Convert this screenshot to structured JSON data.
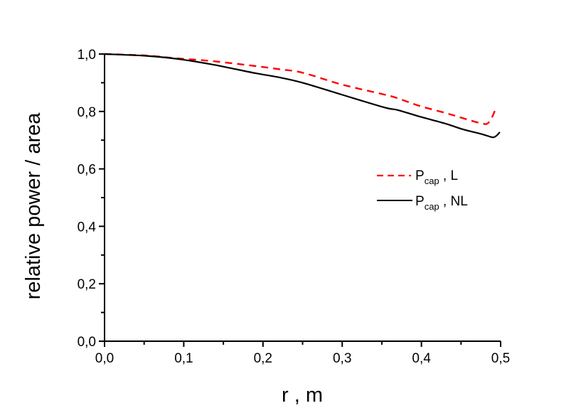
{
  "chart_data": {
    "type": "line",
    "title": "",
    "xlabel": "r , m",
    "ylabel": "relative power / area",
    "xlim": [
      0.0,
      0.5
    ],
    "ylim": [
      0.0,
      1.0
    ],
    "grid": false,
    "legend_position": "center-right inside plot",
    "x_ticks": [
      "0,0",
      "0,1",
      "0,2",
      "0,3",
      "0,4",
      "0,5"
    ],
    "x_tick_values": [
      0.0,
      0.1,
      0.2,
      0.3,
      0.4,
      0.5
    ],
    "y_ticks": [
      "0,0",
      "0,2",
      "0,4",
      "0,6",
      "0,8",
      "1,0"
    ],
    "y_tick_values": [
      0.0,
      0.2,
      0.4,
      0.6,
      0.8,
      1.0
    ],
    "series": [
      {
        "name": "P_cap , L",
        "label_main": "P",
        "label_sub": "cap",
        "label_suffix": " , L",
        "color": "#ff0000",
        "style": "dashed",
        "x": [
          0.0,
          0.05,
          0.092,
          0.137,
          0.191,
          0.218,
          0.25,
          0.299,
          0.353,
          0.37,
          0.398,
          0.43,
          0.452,
          0.478,
          0.485,
          0.49,
          0.493
        ],
        "y": [
          1.0,
          0.995,
          0.985,
          0.975,
          0.958,
          0.948,
          0.935,
          0.894,
          0.859,
          0.846,
          0.819,
          0.795,
          0.777,
          0.757,
          0.762,
          0.785,
          0.805
        ]
      },
      {
        "name": "P_cap , NL",
        "label_main": "P",
        "label_sub": "cap",
        "label_suffix": " , NL",
        "color": "#000000",
        "style": "solid",
        "x": [
          0.0,
          0.05,
          0.092,
          0.137,
          0.191,
          0.218,
          0.25,
          0.299,
          0.353,
          0.37,
          0.398,
          0.43,
          0.452,
          0.475,
          0.487,
          0.491,
          0.495,
          0.499
        ],
        "y": [
          1.0,
          0.994,
          0.983,
          0.963,
          0.933,
          0.92,
          0.9,
          0.859,
          0.814,
          0.805,
          0.782,
          0.758,
          0.738,
          0.722,
          0.712,
          0.71,
          0.716,
          0.728
        ]
      }
    ]
  },
  "colors": {
    "axis": "#000000",
    "series_L": "#ff0000",
    "series_NL": "#000000",
    "background": "#ffffff"
  }
}
